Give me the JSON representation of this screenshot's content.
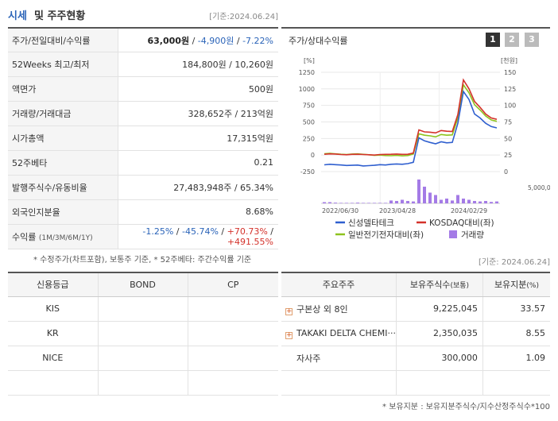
{
  "header": {
    "title_part1": "시세",
    "title_part2": "및 주주현황",
    "date": "[기준:2024.06.24]"
  },
  "quote": {
    "rows": [
      {
        "label": "주가/전일대비/수익률",
        "price": "63,000원",
        "sep1": " / ",
        "change": "-4,900원",
        "sep2": " / ",
        "rate": "-7.22%"
      },
      {
        "label": "52Weeks 최고/최저",
        "value": "184,800원 / 10,260원"
      },
      {
        "label": "액면가",
        "value": "500원"
      },
      {
        "label": "거래량/거래대금",
        "value": "328,652주 / 213억원"
      },
      {
        "label": "시가총액",
        "value": "17,315억원"
      },
      {
        "label": "52주베타",
        "value": "0.21"
      },
      {
        "label": "발행주식수/유동비율",
        "value": "27,483,948주 / 65.34%"
      },
      {
        "label": "외국인지분율",
        "value": "8.68%"
      }
    ],
    "return_label": "수익률",
    "return_label_small": "(1M/3M/6M/1Y)",
    "returns": [
      "-1.25%",
      "-45.74%",
      "+70.73%",
      "+491.55%"
    ],
    "note": "* 수정주가(차트포함), 보통주 기준, * 52주베타: 주간수익률 기준"
  },
  "chart_panel": {
    "title": "주가/상대수익률",
    "pages": [
      "1",
      "2",
      "3"
    ],
    "unit_left": "[%]",
    "unit_right": "[천원]",
    "date_below": "[기준: 2024.06.24]"
  },
  "chart_data": {
    "type": "line",
    "y_left_ticks": [
      "1250",
      "1000",
      "750",
      "500",
      "250",
      "0",
      "-250"
    ],
    "y_right_ticks": [
      "150",
      "125",
      "100",
      "75",
      "50",
      "25",
      "0"
    ],
    "volume_tick": "5,000,000",
    "x_ticks": [
      "2022/06/30",
      "2023/04/28",
      "2024/02/29"
    ],
    "ylim_left": [
      -250,
      1250
    ],
    "ylim_right": [
      0,
      150
    ],
    "series": [
      {
        "name": "신성델타테크",
        "color": "#2f5fcf",
        "values": [
          -148,
          -140,
          -145,
          -150,
          -158,
          -155,
          -152,
          -165,
          -160,
          -155,
          -145,
          -150,
          -140,
          -135,
          -140,
          -130,
          -110,
          260,
          215,
          190,
          170,
          200,
          185,
          190,
          480,
          960,
          840,
          620,
          560,
          480,
          430,
          410
        ]
      },
      {
        "name": "KOSDAQ대비(좌)",
        "color": "#d4322b",
        "values": [
          12,
          18,
          15,
          8,
          5,
          10,
          12,
          8,
          5,
          0,
          8,
          10,
          12,
          15,
          10,
          12,
          30,
          380,
          350,
          345,
          335,
          370,
          360,
          355,
          610,
          1135,
          1000,
          810,
          720,
          620,
          560,
          540
        ]
      },
      {
        "name": "일반전기전자대비(좌)",
        "color": "#8ec31e",
        "values": [
          20,
          25,
          18,
          12,
          8,
          15,
          18,
          10,
          5,
          -5,
          0,
          -8,
          -10,
          -5,
          -12,
          -8,
          15,
          320,
          300,
          290,
          275,
          310,
          300,
          305,
          560,
          1060,
          940,
          760,
          680,
          590,
          530,
          510
        ]
      }
    ],
    "volume": [
      0.05,
      0.05,
      0.03,
      0.02,
      0.02,
      0.02,
      0.03,
      0.02,
      0.02,
      0.02,
      0.02,
      0.02,
      0.12,
      0.1,
      0.15,
      0.1,
      0.08,
      1.0,
      0.7,
      0.45,
      0.35,
      0.15,
      0.2,
      0.12,
      0.35,
      0.2,
      0.15,
      0.1,
      0.08,
      0.1,
      0.06,
      0.08
    ],
    "volume_name": "거래량",
    "volume_color": "#a47be6"
  },
  "credit": {
    "headers": [
      "신용등급",
      "BOND",
      "CP"
    ],
    "rows": [
      [
        "KIS",
        "",
        ""
      ],
      [
        "KR",
        "",
        ""
      ],
      [
        "NICE",
        "",
        ""
      ]
    ]
  },
  "holders": {
    "headers": [
      "주요주주",
      "보유주식수",
      "(보통)",
      "보유지분",
      "(%)"
    ],
    "rows": [
      {
        "name": "구본상 외 8인",
        "shares": "9,225,045",
        "pct": "33.57",
        "expand": "+"
      },
      {
        "name": "TAKAKI DELTA CHEMI···",
        "shares": "2,350,035",
        "pct": "8.55",
        "expand": "+"
      },
      {
        "name": "자사주",
        "shares": "300,000",
        "pct": "1.09",
        "expand": ""
      }
    ],
    "note": "* 보유지분 : 보유지분주식수/지수산정주식수*100"
  }
}
